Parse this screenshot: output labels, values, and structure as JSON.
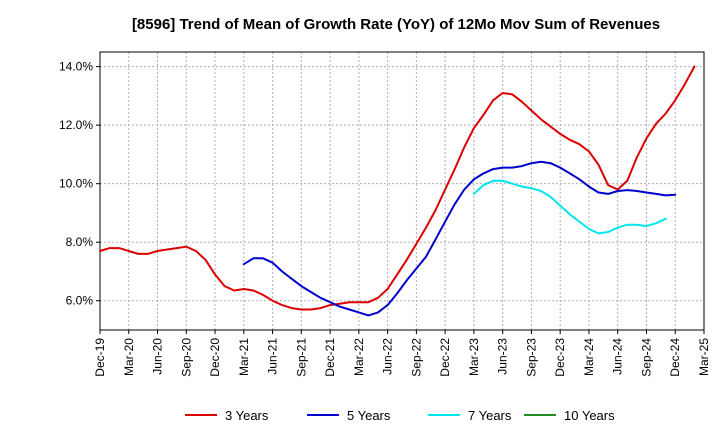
{
  "chart_data": {
    "type": "line",
    "title": "[8596]  Trend of Mean of Growth Rate (YoY) of 12Mo Mov Sum of Revenues",
    "xlabel": "",
    "ylabel": "",
    "ylim": [
      5.0,
      14.5
    ],
    "yticks": [
      6.0,
      8.0,
      10.0,
      12.0,
      14.0
    ],
    "ytick_labels": [
      "6.0%",
      "8.0%",
      "10.0%",
      "12.0%",
      "14.0%"
    ],
    "xticks": [
      "Dec-19",
      "Mar-20",
      "Jun-20",
      "Sep-20",
      "Dec-20",
      "Mar-21",
      "Jun-21",
      "Sep-21",
      "Dec-21",
      "Mar-22",
      "Jun-22",
      "Sep-22",
      "Dec-22",
      "Mar-23",
      "Jun-23",
      "Sep-23",
      "Dec-23",
      "Mar-24",
      "Jun-24",
      "Sep-24",
      "Dec-24",
      "Mar-25"
    ],
    "x_start": "Dec-19",
    "x_step": "1 month",
    "grid": true,
    "legend_position": "bottom",
    "series": [
      {
        "name": "3 Years",
        "color": "#dd0000",
        "start_index": 0,
        "values": [
          7.7,
          7.8,
          7.8,
          7.7,
          7.6,
          7.6,
          7.7,
          7.75,
          7.8,
          7.85,
          7.7,
          7.4,
          6.9,
          6.5,
          6.35,
          6.4,
          6.35,
          6.2,
          6.0,
          5.85,
          5.75,
          5.7,
          5.7,
          5.75,
          5.85,
          5.9,
          5.95,
          5.95,
          5.95,
          6.1,
          6.4,
          6.9,
          7.4,
          7.95,
          8.5,
          9.1,
          9.8,
          10.5,
          11.25,
          11.9,
          12.35,
          12.85,
          13.1,
          13.05,
          12.8,
          12.5,
          12.2,
          11.95,
          11.7,
          11.5,
          11.35,
          11.1,
          10.65,
          9.95,
          9.8,
          10.1,
          10.9,
          11.55,
          12.05,
          12.4,
          12.85,
          13.4,
          14.0
        ]
      },
      {
        "name": "5 Years",
        "color": "#0000cc",
        "start_index": 15,
        "values": [
          7.25,
          7.45,
          7.45,
          7.3,
          7.0,
          6.75,
          6.5,
          6.3,
          6.1,
          5.95,
          5.8,
          5.7,
          5.6,
          5.5,
          5.6,
          5.85,
          6.25,
          6.7,
          7.1,
          7.5,
          8.1,
          8.7,
          9.3,
          9.8,
          10.15,
          10.35,
          10.5,
          10.55,
          10.55,
          10.6,
          10.7,
          10.75,
          10.7,
          10.55,
          10.35,
          10.15,
          9.9,
          9.7,
          9.65,
          9.75,
          9.78,
          9.75,
          9.7,
          9.65,
          9.6,
          9.62
        ]
      },
      {
        "name": "7 Years",
        "color": "#00e5ee",
        "start_index": 39,
        "values": [
          9.65,
          9.95,
          10.1,
          10.1,
          10.0,
          9.9,
          9.85,
          9.75,
          9.55,
          9.25,
          8.95,
          8.7,
          8.45,
          8.3,
          8.35,
          8.5,
          8.6,
          8.6,
          8.55,
          8.65,
          8.8
        ]
      },
      {
        "name": "10 Years",
        "color": "#228b22",
        "start_index": 0,
        "values": []
      }
    ]
  }
}
